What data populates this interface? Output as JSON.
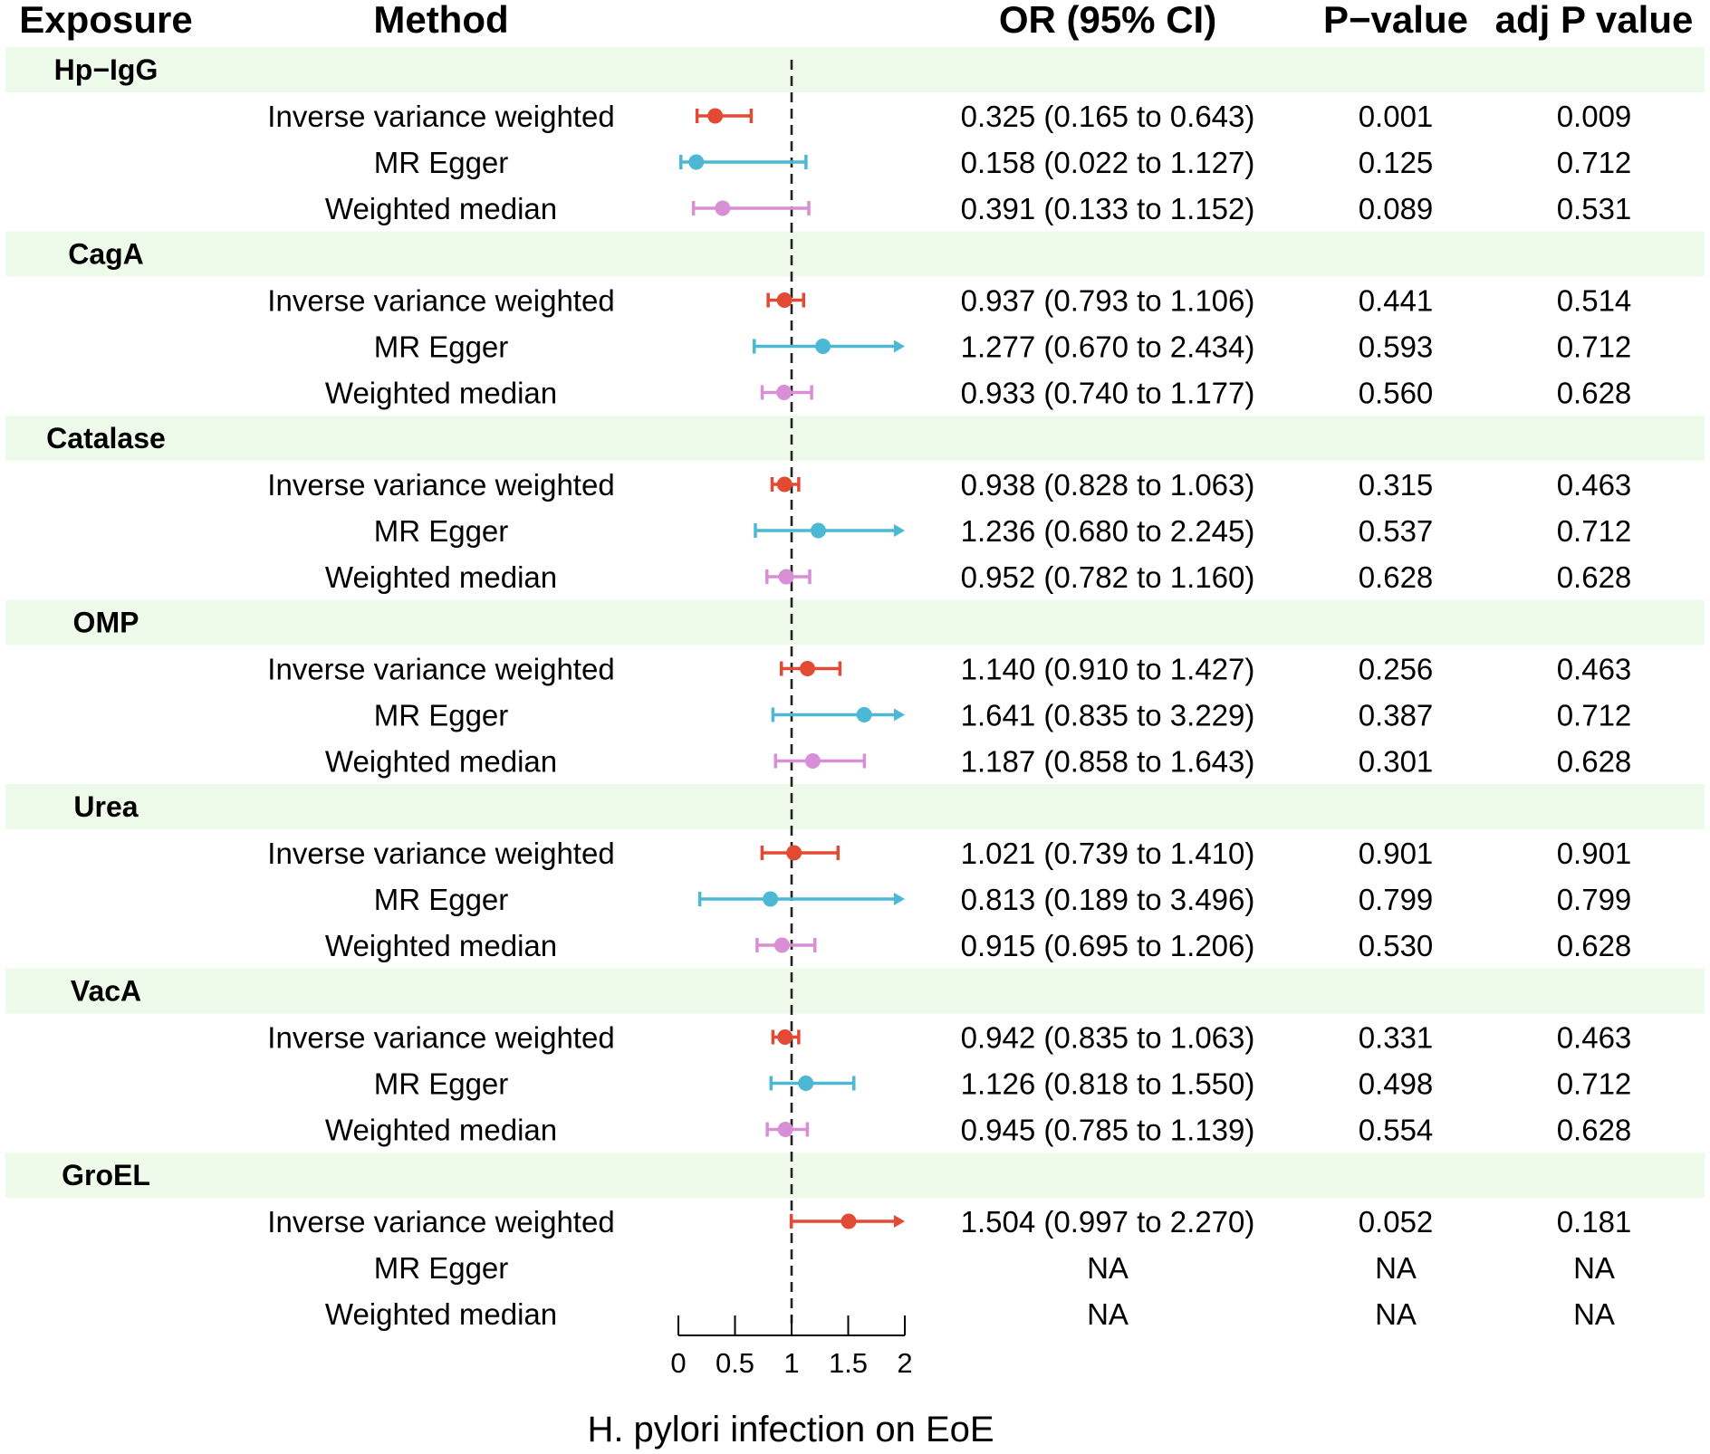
{
  "headers": {
    "exposure": "Exposure",
    "method": "Method",
    "or": "OR (95% CI)",
    "p": "P−value",
    "adjp": "adj P value"
  },
  "colors": {
    "ivw": "#e34a33",
    "egger": "#4db8d3",
    "wm": "#d98fd6",
    "band": "#effbea"
  },
  "chart_data": {
    "type": "forest",
    "xlabel": "H. pylori infection on EoE",
    "xlim": [
      0,
      2
    ],
    "ticks": [
      0,
      0.5,
      1,
      1.5,
      2
    ],
    "tick_labels": [
      "0",
      "0.5",
      "1",
      "1.5",
      "2"
    ],
    "reference_line": 1,
    "groups": [
      {
        "exposure": "Hp−IgG",
        "rows": [
          {
            "method": "Inverse variance weighted",
            "key": "ivw",
            "or": 0.325,
            "lo": 0.165,
            "hi": 0.643,
            "or_text": "0.325 (0.165 to 0.643)",
            "p": "0.001",
            "adjp": "0.009"
          },
          {
            "method": "MR Egger",
            "key": "egger",
            "or": 0.158,
            "lo": 0.022,
            "hi": 1.127,
            "or_text": "0.158 (0.022 to 1.127)",
            "p": "0.125",
            "adjp": "0.712"
          },
          {
            "method": "Weighted median",
            "key": "wm",
            "or": 0.391,
            "lo": 0.133,
            "hi": 1.152,
            "or_text": "0.391 (0.133 to 1.152)",
            "p": "0.089",
            "adjp": "0.531"
          }
        ]
      },
      {
        "exposure": "CagA",
        "rows": [
          {
            "method": "Inverse variance weighted",
            "key": "ivw",
            "or": 0.937,
            "lo": 0.793,
            "hi": 1.106,
            "or_text": "0.937 (0.793 to 1.106)",
            "p": "0.441",
            "adjp": "0.514"
          },
          {
            "method": "MR Egger",
            "key": "egger",
            "or": 1.277,
            "lo": 0.67,
            "hi": 2.434,
            "or_text": "1.277 (0.670 to 2.434)",
            "p": "0.593",
            "adjp": "0.712"
          },
          {
            "method": "Weighted median",
            "key": "wm",
            "or": 0.933,
            "lo": 0.74,
            "hi": 1.177,
            "or_text": "0.933 (0.740 to 1.177)",
            "p": "0.560",
            "adjp": "0.628"
          }
        ]
      },
      {
        "exposure": "Catalase",
        "rows": [
          {
            "method": "Inverse variance weighted",
            "key": "ivw",
            "or": 0.938,
            "lo": 0.828,
            "hi": 1.063,
            "or_text": "0.938 (0.828 to 1.063)",
            "p": "0.315",
            "adjp": "0.463"
          },
          {
            "method": "MR Egger",
            "key": "egger",
            "or": 1.236,
            "lo": 0.68,
            "hi": 2.245,
            "or_text": "1.236 (0.680 to 2.245)",
            "p": "0.537",
            "adjp": "0.712"
          },
          {
            "method": "Weighted median",
            "key": "wm",
            "or": 0.952,
            "lo": 0.782,
            "hi": 1.16,
            "or_text": "0.952 (0.782 to 1.160)",
            "p": "0.628",
            "adjp": "0.628"
          }
        ]
      },
      {
        "exposure": "OMP",
        "rows": [
          {
            "method": "Inverse variance weighted",
            "key": "ivw",
            "or": 1.14,
            "lo": 0.91,
            "hi": 1.427,
            "or_text": "1.140 (0.910 to 1.427)",
            "p": "0.256",
            "adjp": "0.463"
          },
          {
            "method": "MR Egger",
            "key": "egger",
            "or": 1.641,
            "lo": 0.835,
            "hi": 3.229,
            "or_text": "1.641 (0.835 to 3.229)",
            "p": "0.387",
            "adjp": "0.712"
          },
          {
            "method": "Weighted median",
            "key": "wm",
            "or": 1.187,
            "lo": 0.858,
            "hi": 1.643,
            "or_text": "1.187 (0.858 to 1.643)",
            "p": "0.301",
            "adjp": "0.628"
          }
        ]
      },
      {
        "exposure": "Urea",
        "rows": [
          {
            "method": "Inverse variance weighted",
            "key": "ivw",
            "or": 1.021,
            "lo": 0.739,
            "hi": 1.41,
            "or_text": "1.021 (0.739 to 1.410)",
            "p": "0.901",
            "adjp": "0.901"
          },
          {
            "method": "MR Egger",
            "key": "egger",
            "or": 0.813,
            "lo": 0.189,
            "hi": 3.496,
            "or_text": "0.813 (0.189 to 3.496)",
            "p": "0.799",
            "adjp": "0.799"
          },
          {
            "method": "Weighted median",
            "key": "wm",
            "or": 0.915,
            "lo": 0.695,
            "hi": 1.206,
            "or_text": "0.915 (0.695 to 1.206)",
            "p": "0.530",
            "adjp": "0.628"
          }
        ]
      },
      {
        "exposure": "VacA",
        "rows": [
          {
            "method": "Inverse variance weighted",
            "key": "ivw",
            "or": 0.942,
            "lo": 0.835,
            "hi": 1.063,
            "or_text": "0.942 (0.835 to 1.063)",
            "p": "0.331",
            "adjp": "0.463"
          },
          {
            "method": "MR Egger",
            "key": "egger",
            "or": 1.126,
            "lo": 0.818,
            "hi": 1.55,
            "or_text": "1.126 (0.818 to 1.550)",
            "p": "0.498",
            "adjp": "0.712"
          },
          {
            "method": "Weighted median",
            "key": "wm",
            "or": 0.945,
            "lo": 0.785,
            "hi": 1.139,
            "or_text": "0.945 (0.785 to 1.139)",
            "p": "0.554",
            "adjp": "0.628"
          }
        ]
      },
      {
        "exposure": "GroEL",
        "rows": [
          {
            "method": "Inverse variance weighted",
            "key": "ivw",
            "or": 1.504,
            "lo": 0.997,
            "hi": 2.27,
            "or_text": "1.504 (0.997 to 2.270)",
            "p": "0.052",
            "adjp": "0.181"
          },
          {
            "method": "MR Egger",
            "key": "egger",
            "or": null,
            "lo": null,
            "hi": null,
            "or_text": "NA",
            "p": "NA",
            "adjp": "NA"
          },
          {
            "method": "Weighted median",
            "key": "wm",
            "or": null,
            "lo": null,
            "hi": null,
            "or_text": "NA",
            "p": "NA",
            "adjp": "NA"
          }
        ]
      }
    ]
  }
}
